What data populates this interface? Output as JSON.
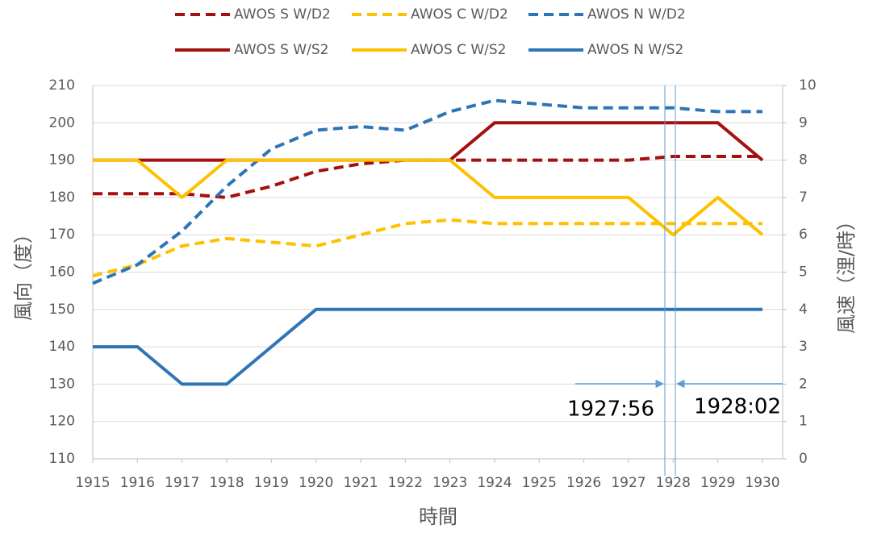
{
  "chart_data": {
    "type": "line",
    "categories": [
      "1915",
      "1916",
      "1917",
      "1918",
      "1919",
      "1920",
      "1921",
      "1922",
      "1923",
      "1924",
      "1925",
      "1926",
      "1927",
      "1928",
      "1929",
      "1930"
    ],
    "series": [
      {
        "name": "AWOS S W/D2",
        "color": "#a50f0f",
        "style": "dashed",
        "axis": "y",
        "values": [
          181,
          181,
          181,
          180,
          183,
          187,
          189,
          190,
          190,
          190,
          190,
          190,
          190,
          191,
          191,
          191
        ]
      },
      {
        "name": "AWOS C W/D2",
        "color": "#ffc000",
        "style": "dashed",
        "axis": "y",
        "values": [
          159,
          162,
          167,
          169,
          168,
          167,
          170,
          173,
          174,
          173,
          173,
          173,
          173,
          173,
          173,
          173
        ]
      },
      {
        "name": "AWOS N W/D2",
        "color": "#2e75b6",
        "style": "dashed",
        "axis": "y",
        "values": [
          157,
          162,
          171,
          183,
          193,
          198,
          199,
          198,
          203,
          206,
          205,
          204,
          204,
          204,
          203,
          203
        ]
      },
      {
        "name": "AWOS S W/S2",
        "color": "#a50f0f",
        "style": "solid",
        "axis": "y2",
        "values": [
          8,
          8,
          8,
          8,
          8,
          8,
          8,
          8,
          8,
          9,
          9,
          9,
          9,
          9,
          9,
          8
        ]
      },
      {
        "name": "AWOS C W/S2",
        "color": "#ffc000",
        "style": "solid",
        "axis": "y2",
        "values": [
          8,
          8,
          7,
          8,
          8,
          8,
          8,
          8,
          8,
          7,
          7,
          7,
          7,
          6,
          7,
          6
        ]
      },
      {
        "name": "AWOS N W/S2",
        "color": "#2e75b6",
        "style": "solid",
        "axis": "y2",
        "values": [
          3,
          3,
          2,
          2,
          3,
          4,
          4,
          4,
          4,
          4,
          4,
          4,
          4,
          4,
          4,
          4
        ]
      }
    ],
    "ylim": [
      110,
      210
    ],
    "yticks": [
      110,
      120,
      130,
      140,
      150,
      160,
      170,
      180,
      190,
      200,
      210
    ],
    "y2lim": [
      0,
      10
    ],
    "y2ticks": [
      0,
      1,
      2,
      3,
      4,
      5,
      6,
      7,
      8,
      9,
      10
    ],
    "ylabel": "風向（度）",
    "y2label": "風速（浬/時）",
    "xlabel": "時間",
    "annotations": [
      "1927:56",
      "1928:02"
    ],
    "grid": true,
    "legend": "top"
  }
}
